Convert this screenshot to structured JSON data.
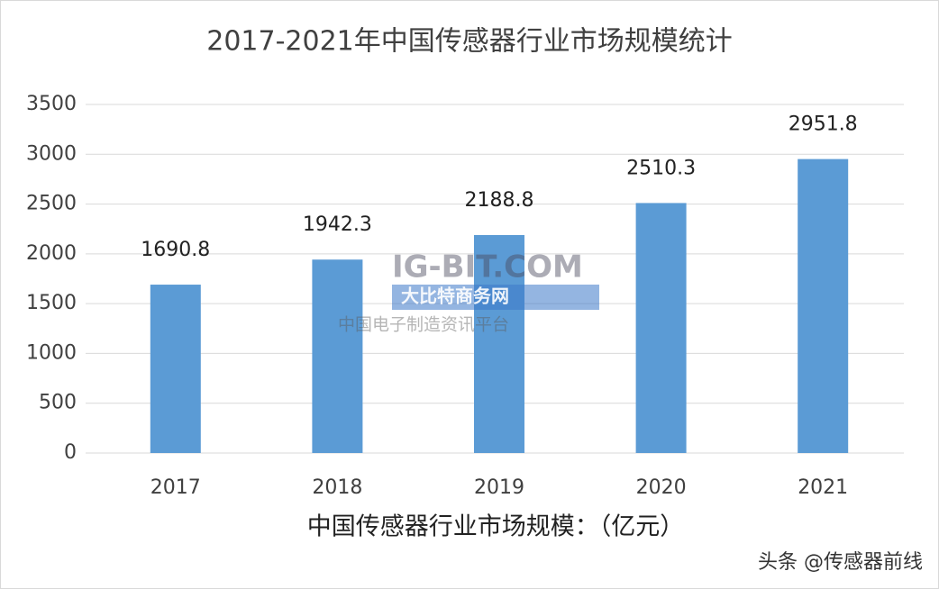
{
  "chart_data": {
    "type": "bar",
    "title": "2017-2021年中国传感器行业市场规模统计",
    "x_label": "中国传感器行业市场规模：（亿元）",
    "categories": [
      "2017",
      "2018",
      "2019",
      "2020",
      "2021"
    ],
    "values": [
      1690.8,
      1942.3,
      2188.8,
      2510.3,
      2951.8
    ],
    "color": "#5b9bd5",
    "ylim": [
      0,
      3500
    ],
    "yticks": [
      0,
      500,
      1000,
      1500,
      2000,
      2500,
      3000,
      3500
    ],
    "grid": true
  },
  "watermark": [
    "IG-BIT.COM",
    "大比特商务网",
    "中国电子制造资讯平台"
  ],
  "source": "头条 @传感器前线"
}
